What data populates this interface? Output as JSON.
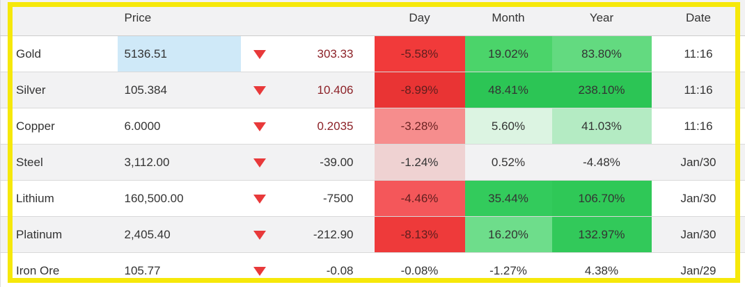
{
  "colors": {
    "highlight_border": "#f6e80a",
    "triangle_red": "#e8393a",
    "header_bg": "#f2f2f3",
    "row_alt_bg": "#f2f2f3",
    "price_flash_blue": "#cfe9f8",
    "change_red_text": "#8c2127",
    "default_text": "#333333"
  },
  "table": {
    "headers": {
      "name": "",
      "price": "Price",
      "change": "",
      "day": "Day",
      "month": "Month",
      "year": "Year",
      "date": "Date"
    },
    "rows": [
      {
        "name": "Gold",
        "price": "5136.51",
        "price_bg": "#cfe9f8",
        "direction": "down",
        "change": "303.33",
        "change_color": "#8c2127",
        "day": "-5.58%",
        "day_bg": "#f13a3a",
        "day_color": "#5f1e1e",
        "month": "19.02%",
        "month_bg": "#4bd46a",
        "year": "83.80%",
        "year_bg": "#63da80",
        "date": "11:16",
        "row_bg": "#ffffff"
      },
      {
        "name": "Silver",
        "price": "105.384",
        "price_bg": "",
        "direction": "down",
        "change": "10.406",
        "change_color": "#8c2127",
        "day": "-8.99%",
        "day_bg": "#e93434",
        "day_color": "#5f1e1e",
        "month": "48.41%",
        "month_bg": "#2cc555",
        "year": "238.10%",
        "year_bg": "#2cc555",
        "date": "11:16",
        "row_bg": "#f2f2f3"
      },
      {
        "name": "Copper",
        "price": "6.0000",
        "price_bg": "",
        "direction": "down",
        "change": "0.2035",
        "change_color": "#8c2127",
        "day": "-3.28%",
        "day_bg": "#f68d8d",
        "day_color": "#6b2222",
        "month": "5.60%",
        "month_bg": "#dcf4e2",
        "year": "41.03%",
        "year_bg": "#b4ebc3",
        "date": "11:16",
        "row_bg": "#ffffff"
      },
      {
        "name": "Steel",
        "price": "3,112.00",
        "price_bg": "",
        "direction": "down",
        "change": "-39.00",
        "change_color": "#333333",
        "day": "-1.24%",
        "day_bg": "#efd2d2",
        "day_color": "#333333",
        "month": "0.52%",
        "month_bg": "",
        "year": "-4.48%",
        "year_bg": "",
        "date": "Jan/30",
        "row_bg": "#f2f2f3"
      },
      {
        "name": "Lithium",
        "price": "160,500.00",
        "price_bg": "",
        "direction": "down",
        "change": "-7500",
        "change_color": "#333333",
        "day": "-4.46%",
        "day_bg": "#f4575a",
        "day_color": "#5f1e1e",
        "month": "35.44%",
        "month_bg": "#33cb5c",
        "year": "106.70%",
        "year_bg": "#2fc857",
        "date": "Jan/30",
        "row_bg": "#ffffff"
      },
      {
        "name": "Platinum",
        "price": "2,405.40",
        "price_bg": "",
        "direction": "down",
        "change": "-212.90",
        "change_color": "#333333",
        "day": "-8.13%",
        "day_bg": "#ee3a3a",
        "day_color": "#5f1e1e",
        "month": "16.20%",
        "month_bg": "#6edd8b",
        "year": "132.97%",
        "year_bg": "#32c95a",
        "date": "Jan/30",
        "row_bg": "#f2f2f3"
      },
      {
        "name": "Iron Ore",
        "price": "105.77",
        "price_bg": "",
        "direction": "down",
        "change": "-0.08",
        "change_color": "#333333",
        "day": "-0.08%",
        "day_bg": "",
        "day_color": "#333333",
        "month": "-1.27%",
        "month_bg": "",
        "year": "4.38%",
        "year_bg": "",
        "date": "Jan/29",
        "row_bg": "#ffffff"
      }
    ]
  }
}
